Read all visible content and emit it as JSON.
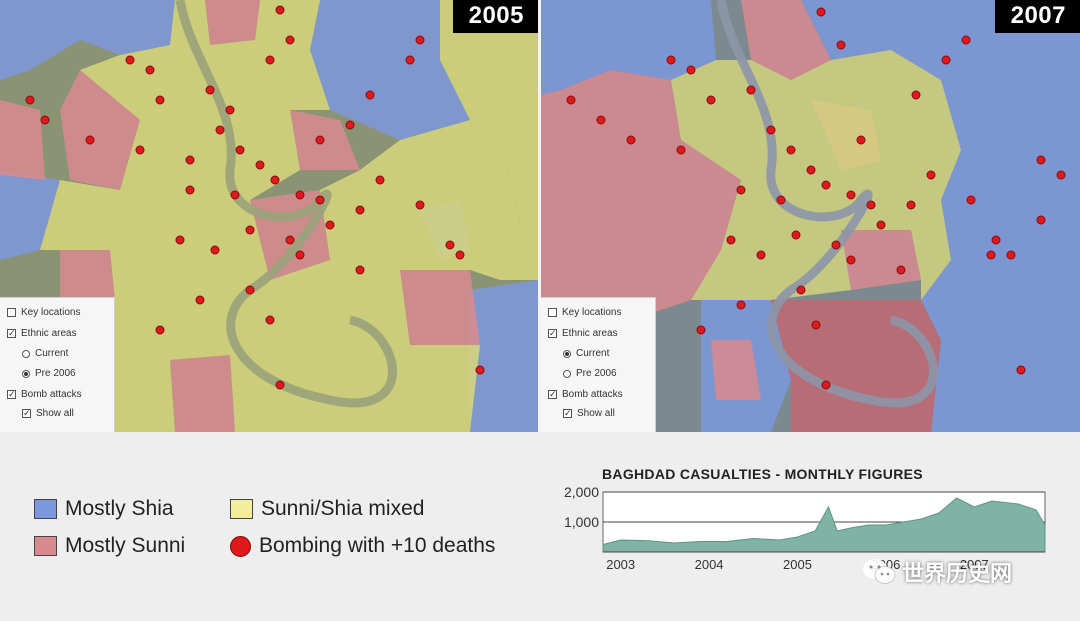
{
  "maps": [
    {
      "year": "2005",
      "controls": {
        "key_locations": "Key locations",
        "ethnic_areas": "Ethnic areas",
        "current": "Current",
        "pre_2006": "Pre 2006",
        "bomb_attacks": "Bomb attacks",
        "show_all": "Show all",
        "selected_period": "pre_2006"
      }
    },
    {
      "year": "2007",
      "controls": {
        "key_locations": "Key locations",
        "ethnic_areas": "Ethnic areas",
        "current": "Current",
        "pre_2006": "Pre 2006",
        "bomb_attacks": "Bomb attacks",
        "show_all": "Show all",
        "selected_period": "current"
      }
    }
  ],
  "legend": {
    "shia": "Mostly Shia",
    "sunni": "Mostly Sunni",
    "mixed": "Sunni/Shia mixed",
    "bombing": "Bombing with +10 deaths"
  },
  "colors": {
    "shia": "#7c98dd",
    "sunni": "#d98a8f",
    "mixed": "#f2ee9c",
    "bombing": "#e0191f",
    "chart_fill": "#7fb3a6"
  },
  "chart_data": {
    "type": "area",
    "title": "BAGHDAD CASUALTIES - MONTHLY FIGURES",
    "xlabel": "",
    "ylabel": "",
    "ylim": [
      0,
      2000
    ],
    "yticks": [
      {
        "value": 2000,
        "label": "2,000"
      },
      {
        "value": 1000,
        "label": "1,000"
      }
    ],
    "xticks": [
      {
        "value": 2003,
        "label": "2003"
      },
      {
        "value": 2004,
        "label": "2004"
      },
      {
        "value": 2005,
        "label": "2005"
      },
      {
        "value": 2006,
        "label": "2006"
      },
      {
        "value": 2007,
        "label": "2007"
      }
    ],
    "x": [
      2002.8,
      2003.0,
      2003.3,
      2003.6,
      2003.9,
      2004.2,
      2004.5,
      2004.8,
      2005.0,
      2005.2,
      2005.35,
      2005.45,
      2005.6,
      2005.8,
      2006.0,
      2006.2,
      2006.4,
      2006.6,
      2006.8,
      2007.0,
      2007.2,
      2007.5,
      2007.7,
      2007.8
    ],
    "values": [
      250,
      400,
      380,
      300,
      350,
      350,
      450,
      400,
      500,
      700,
      1500,
      700,
      800,
      900,
      900,
      1000,
      1100,
      1300,
      1800,
      1500,
      1700,
      1600,
      1400,
      900
    ]
  },
  "watermark": "世界历史网"
}
